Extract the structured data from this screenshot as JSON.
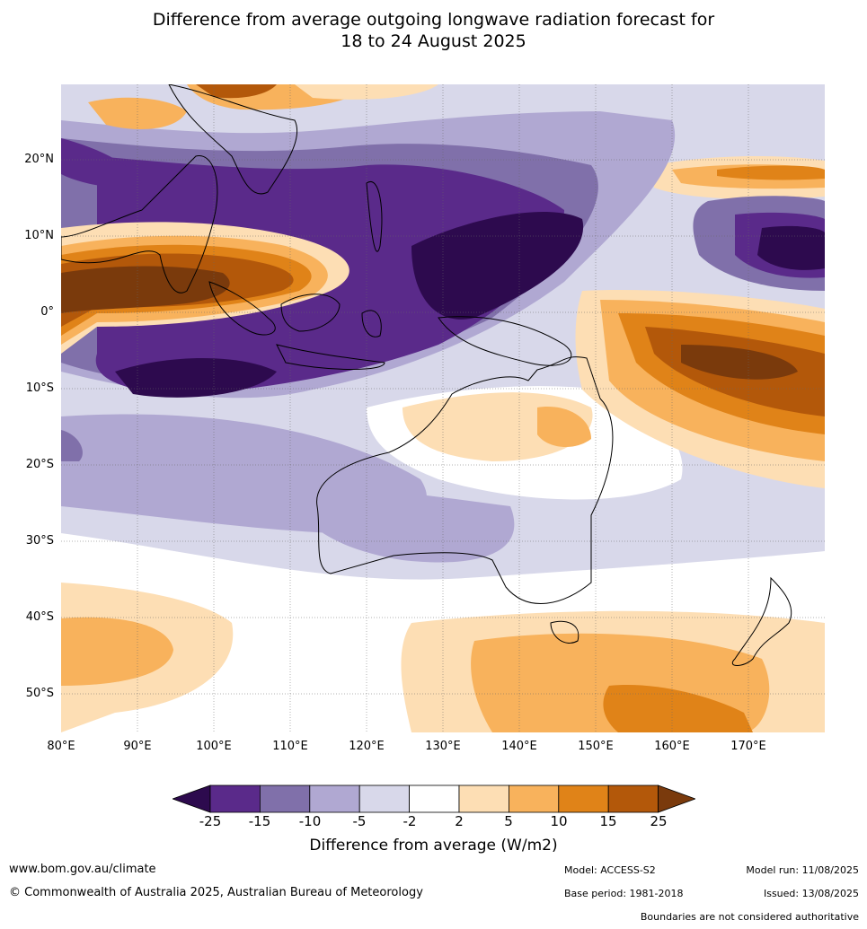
{
  "title": {
    "line1": "Difference from average outgoing longwave radiation forecast for",
    "line2": "18 to 24 August 2025"
  },
  "map": {
    "lat_labels": [
      "20°N",
      "10°N",
      "0°",
      "10°S",
      "20°S",
      "30°S",
      "40°S",
      "50°S"
    ],
    "lon_labels": [
      "80°E",
      "90°E",
      "100°E",
      "110°E",
      "120°E",
      "130°E",
      "140°E",
      "150°E",
      "160°E",
      "170°E"
    ]
  },
  "legend": {
    "ticks": [
      "-25",
      "-15",
      "-10",
      "-5",
      "-2",
      "2",
      "5",
      "10",
      "15",
      "25"
    ],
    "colors": [
      "#2d0a4e",
      "#5a2a8a",
      "#8070aa",
      "#b0a8d2",
      "#d8d8ea",
      "#ffffff",
      "#fddeb4",
      "#f8b25c",
      "#e08318",
      "#b3580a",
      "#7a3a0c"
    ],
    "label": "Difference from average (W/m2)"
  },
  "footer": {
    "website": "www.bom.gov.au/climate",
    "copyright": "© Commonwealth of Australia 2025, Australian Bureau of Meteorology",
    "model": "Model: ACCESS-S2",
    "base_period": "Base period: 1981-2018",
    "model_run": "Model run: 11/08/2025",
    "issued": "Issued: 13/08/2025",
    "disclaimer": "Boundaries are not considered authoritative"
  }
}
